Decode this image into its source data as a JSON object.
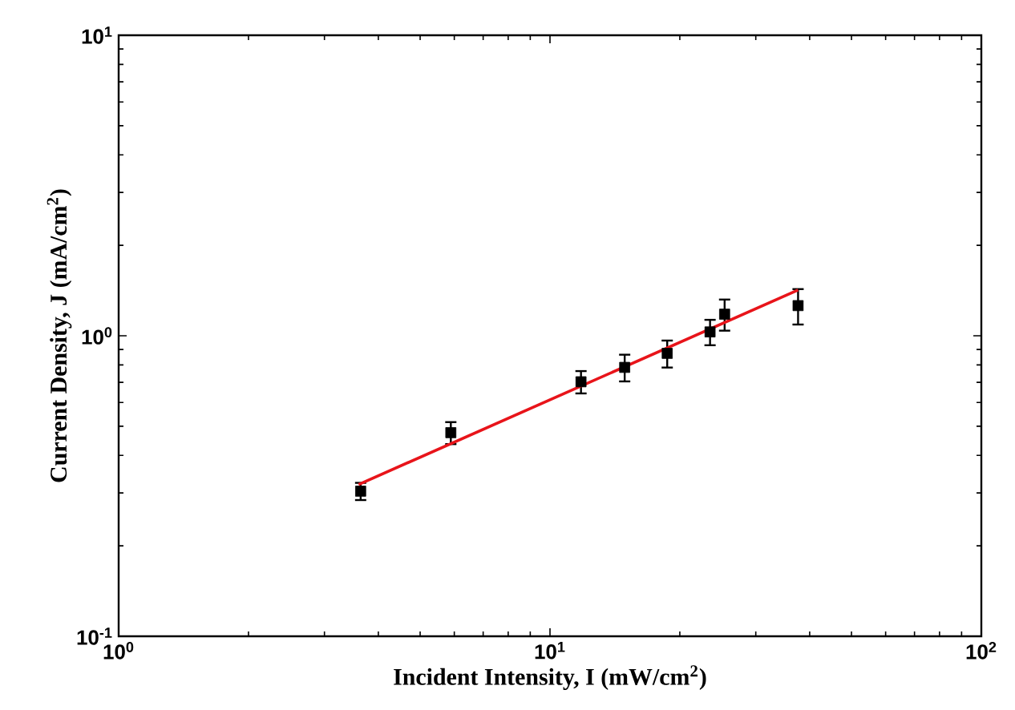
{
  "chart_data": {
    "type": "scatter",
    "xlabel": "Incident Intensity, I (mW/cm$^{2}$)",
    "ylabel": "Current Density, J (mA/cm$^{2}$)",
    "log": "xy",
    "xlim": [
      1,
      100
    ],
    "ylim": [
      0.1,
      10
    ],
    "xticks": [
      {
        "value": 1,
        "label": "10$^{0}$"
      },
      {
        "value": 10,
        "label": "10$^{1}$"
      },
      {
        "value": 100,
        "label": "10$^{2}$"
      }
    ],
    "yticks": [
      {
        "value": 0.1,
        "label": "10$^{-1}$"
      },
      {
        "value": 1,
        "label": "10$^{0}$"
      },
      {
        "value": 10,
        "label": "10$^{1}$"
      }
    ],
    "series": [
      {
        "marker": "square",
        "color": "#000000",
        "x": [
          3.64,
          5.89,
          11.8,
          14.9,
          18.7,
          23.5,
          25.4,
          37.6
        ],
        "values": [
          0.304,
          0.476,
          0.703,
          0.785,
          0.874,
          1.03,
          1.18,
          1.26
        ],
        "errors": [
          0.02,
          0.04,
          0.06,
          0.08,
          0.09,
          0.1,
          0.14,
          0.17
        ]
      },
      {
        "type": "line",
        "color": "#e8141a",
        "x": [
          3.6,
          37.6
        ],
        "values": [
          0.32,
          1.42
        ]
      }
    ]
  }
}
